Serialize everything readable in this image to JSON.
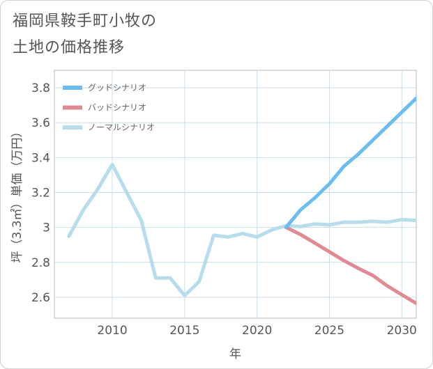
{
  "chart_data": {
    "type": "line",
    "title_lines": [
      "福岡県鞍手町小牧の",
      "土地の価格推移"
    ],
    "xlabel": "年",
    "ylabel": "坪（3.3㎡）単価（万円）",
    "xlim": [
      2006,
      2031
    ],
    "ylim": [
      2.48,
      3.9
    ],
    "x_ticks": [
      2010,
      2015,
      2020,
      2025,
      2030
    ],
    "x_tick_labels": [
      "2010",
      "2015",
      "2020",
      "2025",
      "2030"
    ],
    "y_ticks": [
      2.6,
      2.8,
      3.0,
      3.2,
      3.4,
      3.6,
      3.8
    ],
    "y_tick_labels": [
      "2.6",
      "2.8",
      "3",
      "3.2",
      "3.4",
      "3.6",
      "3.8"
    ],
    "grid": true,
    "legend_position": "top-left",
    "series": [
      {
        "name": "グッドシナリオ",
        "color": "#6cbdef",
        "x": [
          2022,
          2023,
          2024,
          2025,
          2026,
          2027,
          2028,
          2029,
          2030,
          2031
        ],
        "values": [
          3.0,
          3.1,
          3.17,
          3.25,
          3.35,
          3.42,
          3.5,
          3.58,
          3.66,
          3.74
        ]
      },
      {
        "name": "バッドシナリオ",
        "color": "#e08a92",
        "x": [
          2022,
          2023,
          2024,
          2025,
          2026,
          2027,
          2028,
          2029,
          2030,
          2031
        ],
        "values": [
          3.0,
          2.96,
          2.91,
          2.86,
          2.81,
          2.765,
          2.725,
          2.665,
          2.615,
          2.565
        ]
      },
      {
        "name": "ノーマルシナリオ",
        "color": "#b7dcec",
        "x": [
          2007,
          2008,
          2009,
          2010,
          2011,
          2012,
          2013,
          2014,
          2015,
          2016,
          2017,
          2018,
          2019,
          2020,
          2021,
          2022,
          2023,
          2024,
          2025,
          2026,
          2027,
          2028,
          2029,
          2030,
          2031
        ],
        "values": [
          2.95,
          3.1,
          3.22,
          3.36,
          3.2,
          3.04,
          2.71,
          2.71,
          2.61,
          2.69,
          2.955,
          2.945,
          2.965,
          2.945,
          2.985,
          3.01,
          3.005,
          3.02,
          3.015,
          3.03,
          3.03,
          3.035,
          3.03,
          3.045,
          3.04
        ]
      }
    ]
  }
}
